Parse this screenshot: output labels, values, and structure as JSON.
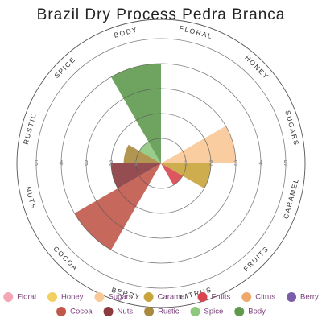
{
  "chart_data": {
    "type": "polar-bar",
    "title": "Brazil Dry Process Pedra Branca",
    "categories": [
      "Floral",
      "Honey",
      "Sugars",
      "Caramel",
      "Fruits",
      "Citrus",
      "Berry",
      "Cocoa",
      "Nuts",
      "Rustic",
      "Spice",
      "Body"
    ],
    "values": [
      0,
      0,
      3,
      2,
      1,
      0,
      0,
      4,
      2,
      1.5,
      1,
      4
    ],
    "colors": [
      "#f4a6b4",
      "#f2d060",
      "#f8c896",
      "#c9a43c",
      "#d9454f",
      "#eea96a",
      "#7a5fa8",
      "#c0584a",
      "#8b3a3e",
      "#a88a3e",
      "#8ec87e",
      "#5f9a4f"
    ],
    "ylim": [
      0,
      5
    ],
    "yticks": [
      1,
      2,
      3,
      4,
      5
    ]
  }
}
